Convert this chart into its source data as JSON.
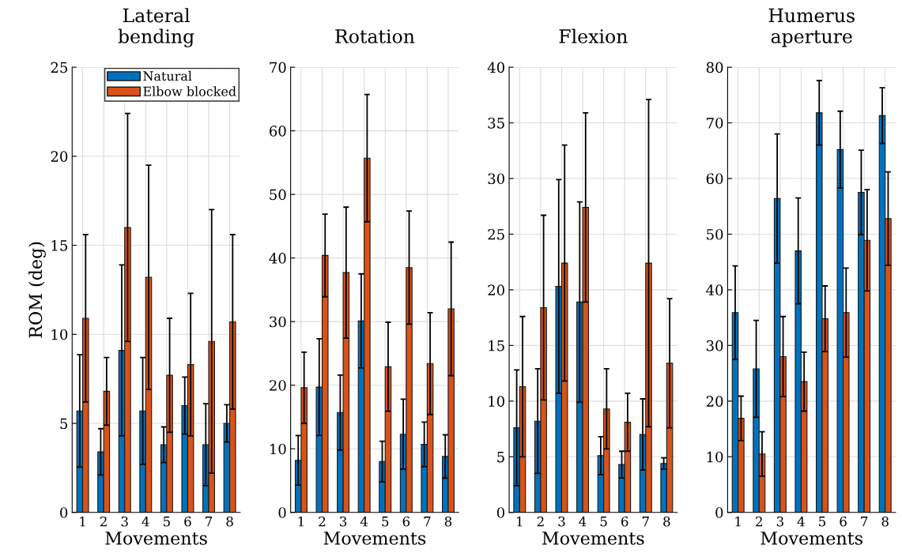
{
  "chart_data": [
    {
      "type": "bar",
      "title": "Lateral\nbending",
      "xlabel": "Movements",
      "ylabel": "ROM (deg)",
      "categories": [
        "1",
        "2",
        "3",
        "4",
        "5",
        "6",
        "7",
        "8"
      ],
      "ylim": [
        0,
        25
      ],
      "yticks": [
        0,
        5,
        10,
        15,
        20,
        25
      ],
      "grid": true,
      "legend": "top right",
      "series": [
        {
          "name": "Natural",
          "color": "#0072bd",
          "values": [
            5.7,
            3.4,
            9.1,
            5.7,
            3.8,
            6.0,
            3.8,
            5.0
          ],
          "errors": [
            3.15,
            1.3,
            4.8,
            3.0,
            1.0,
            1.6,
            2.3,
            1.05
          ]
        },
        {
          "name": "Elbow blocked",
          "color": "#d95319",
          "values": [
            10.9,
            6.8,
            16.0,
            13.2,
            7.7,
            8.3,
            9.6,
            10.7
          ],
          "errors": [
            4.7,
            1.9,
            6.4,
            6.3,
            3.2,
            4.0,
            7.4,
            4.9
          ]
        }
      ]
    },
    {
      "type": "bar",
      "title": "Rotation",
      "xlabel": "Movements",
      "categories": [
        "1",
        "2",
        "3",
        "4",
        "5",
        "6",
        "7",
        "8"
      ],
      "ylim": [
        0,
        70
      ],
      "yticks": [
        0,
        10,
        20,
        30,
        40,
        50,
        60,
        70
      ],
      "grid": true,
      "series": [
        {
          "color": "#0072bd",
          "values": [
            8.2,
            19.7,
            15.7,
            30.1,
            8.0,
            12.3,
            10.7,
            8.8
          ],
          "errors": [
            3.9,
            7.6,
            5.9,
            7.4,
            3.2,
            5.5,
            3.5,
            3.4
          ]
        },
        {
          "color": "#d95319",
          "values": [
            19.6,
            40.4,
            37.7,
            55.7,
            22.9,
            38.5,
            23.4,
            32.0
          ],
          "errors": [
            5.6,
            6.5,
            10.3,
            10.0,
            7.0,
            8.9,
            8.0,
            10.5
          ]
        }
      ]
    },
    {
      "type": "bar",
      "title": "Flexion",
      "xlabel": "Movements",
      "categories": [
        "1",
        "2",
        "3",
        "4",
        "5",
        "6",
        "7",
        "8"
      ],
      "ylim": [
        0,
        40
      ],
      "yticks": [
        0,
        5,
        10,
        15,
        20,
        25,
        30,
        35,
        40
      ],
      "grid": true,
      "series": [
        {
          "color": "#0072bd",
          "values": [
            7.6,
            8.2,
            20.3,
            18.9,
            5.1,
            4.3,
            7.0,
            4.4
          ],
          "errors": [
            5.2,
            4.7,
            9.6,
            9.0,
            1.7,
            1.2,
            3.2,
            0.5
          ]
        },
        {
          "color": "#d95319",
          "values": [
            11.3,
            18.4,
            22.4,
            27.4,
            9.3,
            8.1,
            22.4,
            13.4
          ],
          "errors": [
            6.3,
            8.3,
            10.6,
            8.5,
            3.6,
            2.6,
            14.7,
            5.8
          ]
        }
      ]
    },
    {
      "type": "bar",
      "title": "Humerus\naperture",
      "xlabel": "Movements",
      "categories": [
        "1",
        "2",
        "3",
        "4",
        "5",
        "6",
        "7",
        "8"
      ],
      "ylim": [
        0,
        80
      ],
      "yticks": [
        0,
        10,
        20,
        30,
        40,
        50,
        60,
        70,
        80
      ],
      "grid": true,
      "series": [
        {
          "color": "#0072bd",
          "values": [
            35.9,
            25.8,
            56.4,
            47.0,
            71.8,
            65.2,
            57.5,
            71.3
          ],
          "errors": [
            8.4,
            8.7,
            11.6,
            9.5,
            5.8,
            6.9,
            7.6,
            5.0
          ]
        },
        {
          "color": "#d95319",
          "values": [
            16.9,
            10.5,
            28.0,
            23.5,
            34.8,
            35.9,
            48.9,
            52.8
          ],
          "errors": [
            4.0,
            4.0,
            7.2,
            5.3,
            5.9,
            8.0,
            9.1,
            8.4
          ]
        }
      ]
    }
  ]
}
